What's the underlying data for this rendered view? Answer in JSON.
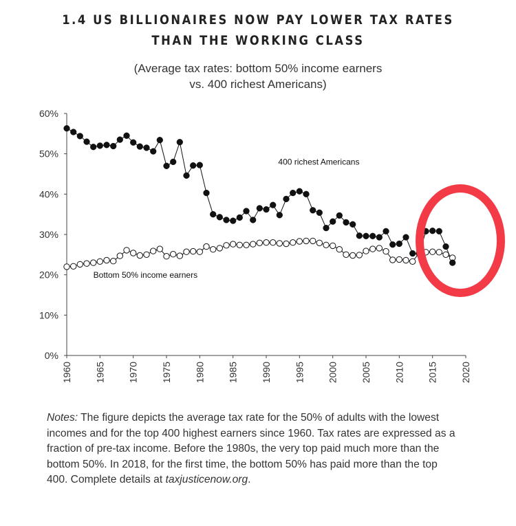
{
  "title": {
    "line1": "1.4 US BILLIONAIRES NOW PAY LOWER TAX RATES",
    "line2": "THAN THE WORKING CLASS"
  },
  "subtitle": {
    "line1": "(Average tax rates: bottom 50% income earners",
    "line2": "vs. 400 richest Americans)"
  },
  "chart_data": {
    "type": "line",
    "xlabel": "",
    "ylabel": "",
    "xlim": [
      1960,
      2020
    ],
    "ylim": [
      0,
      60
    ],
    "x_ticks": [
      "1960",
      "1965",
      "1970",
      "1975",
      "1980",
      "1985",
      "1990",
      "1995",
      "2000",
      "2005",
      "2010",
      "2015",
      "2020"
    ],
    "y_ticks": [
      "0%",
      "10%",
      "20%",
      "30%",
      "40%",
      "50%",
      "60%"
    ],
    "grid": false,
    "x": [
      1960,
      1961,
      1962,
      1963,
      1964,
      1965,
      1966,
      1967,
      1968,
      1969,
      1970,
      1971,
      1972,
      1973,
      1974,
      1975,
      1976,
      1977,
      1978,
      1979,
      1980,
      1981,
      1982,
      1983,
      1984,
      1985,
      1986,
      1987,
      1988,
      1989,
      1990,
      1991,
      1992,
      1993,
      1994,
      1995,
      1996,
      1997,
      1998,
      1999,
      2000,
      2001,
      2002,
      2003,
      2004,
      2005,
      2006,
      2007,
      2008,
      2009,
      2010,
      2011,
      2012,
      2013,
      2014,
      2015,
      2016,
      2017,
      2018
    ],
    "series": [
      {
        "name": "400 richest Americans",
        "marker": "filled",
        "values": [
          56.3,
          55.4,
          54.4,
          53.0,
          51.7,
          52.0,
          52.2,
          51.9,
          53.5,
          54.5,
          52.8,
          51.8,
          51.5,
          50.6,
          53.4,
          47.0,
          48.0,
          52.9,
          44.6,
          47.1,
          47.2,
          40.3,
          35.0,
          34.3,
          33.6,
          33.4,
          34.2,
          35.8,
          33.6,
          36.5,
          36.2,
          37.3,
          34.8,
          38.8,
          40.3,
          40.7,
          40.0,
          36.0,
          35.4,
          31.6,
          33.2,
          34.7,
          33.0,
          32.5,
          29.7,
          29.6,
          29.6,
          29.3,
          30.8,
          27.5,
          27.7,
          29.3,
          25.3,
          25.2,
          30.8,
          30.9,
          30.8,
          27.0,
          23.0
        ],
        "color": "#111111"
      },
      {
        "name": "Bottom 50% income earners",
        "marker": "hollow",
        "values": [
          22.0,
          22.1,
          22.6,
          22.8,
          23.0,
          23.3,
          23.6,
          23.4,
          24.7,
          26.1,
          25.4,
          24.8,
          25.0,
          25.9,
          26.4,
          24.6,
          25.1,
          24.7,
          25.7,
          25.8,
          25.7,
          27.0,
          26.3,
          26.6,
          27.3,
          27.6,
          27.4,
          27.4,
          27.6,
          27.9,
          28.0,
          28.0,
          27.8,
          27.7,
          28.0,
          28.3,
          28.4,
          28.4,
          27.9,
          27.4,
          27.2,
          26.3,
          25.0,
          24.8,
          24.9,
          25.9,
          26.4,
          26.6,
          25.8,
          23.7,
          23.8,
          23.6,
          23.3,
          25.4,
          25.6,
          25.7,
          25.6,
          25.0,
          24.2
        ],
        "color": "#111111"
      }
    ],
    "annotations": [
      {
        "text": "400 richest Americans",
        "x": 1991.8,
        "y": 47.3
      },
      {
        "text": "Bottom 50% income earners",
        "x": 1964.0,
        "y": 19.3
      }
    ]
  },
  "notes": {
    "label": "Notes:",
    "text": " The figure depicts the average tax rate for the 50% of adults with the lowest incomes and for the top 400 highest earners since 1960. Tax rates are expressed as a fraction of pre-tax income. Before the 1980s, the very top paid much more than the bottom 50%. In 2018, for the first time, the bottom 50% has paid more than the top 400. Complete details at ",
    "link": "taxjusticenow.org",
    "end": "."
  },
  "highlight": {
    "color": "#f23b47"
  }
}
